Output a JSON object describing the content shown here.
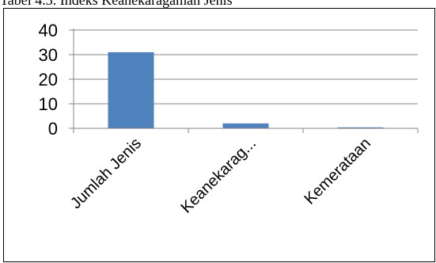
{
  "caption": "Tabel 4.3. Indeks Keanekaragaman Jenis",
  "chart_data": {
    "type": "bar",
    "title": "",
    "xlabel": "",
    "ylabel": "",
    "categories": [
      "Jumlah Jenis",
      "Keanekarag...",
      "Kemerataan"
    ],
    "values": [
      31,
      2,
      0.4
    ],
    "ylim": [
      0,
      40
    ],
    "yticks": [
      0,
      10,
      20,
      30,
      40
    ],
    "grid": true,
    "legend": "none",
    "bar_color": "#4f81bd"
  }
}
